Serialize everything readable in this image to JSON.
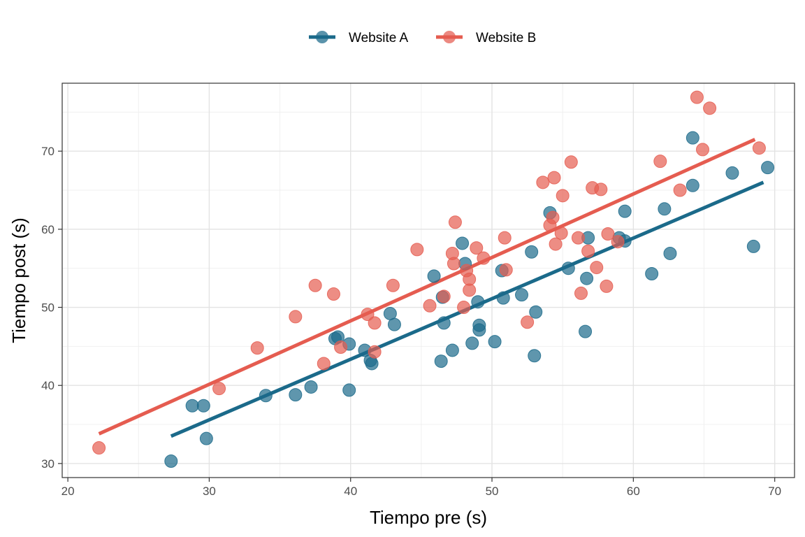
{
  "chart_data": {
    "type": "scatter",
    "title": "",
    "xlabel": "Tiempo pre (s)",
    "ylabel": "Tiempo post (s)",
    "xlim": [
      19.6,
      71.4
    ],
    "ylim": [
      28.2,
      78.7
    ],
    "x_ticks": [
      20,
      30,
      40,
      50,
      60,
      70
    ],
    "y_ticks": [
      30,
      40,
      50,
      60,
      70
    ],
    "grid": true,
    "legend_position": "top",
    "series": [
      {
        "name": "Website A",
        "color": "#1b6a8a",
        "points": [
          [
            27.3,
            30.3
          ],
          [
            28.8,
            37.4
          ],
          [
            29.6,
            37.4
          ],
          [
            29.8,
            33.2
          ],
          [
            34.0,
            38.7
          ],
          [
            36.1,
            38.8
          ],
          [
            37.2,
            39.8
          ],
          [
            38.9,
            46.0
          ],
          [
            39.1,
            46.2
          ],
          [
            39.9,
            45.3
          ],
          [
            39.9,
            39.4
          ],
          [
            41.0,
            44.5
          ],
          [
            41.4,
            43.2
          ],
          [
            41.5,
            42.8
          ],
          [
            42.8,
            49.2
          ],
          [
            43.1,
            47.8
          ],
          [
            45.9,
            54.0
          ],
          [
            46.4,
            43.1
          ],
          [
            46.5,
            51.3
          ],
          [
            46.6,
            48.0
          ],
          [
            47.2,
            44.5
          ],
          [
            47.9,
            58.2
          ],
          [
            48.1,
            55.6
          ],
          [
            48.6,
            45.4
          ],
          [
            49.0,
            50.7
          ],
          [
            49.1,
            47.7
          ],
          [
            49.1,
            47.1
          ],
          [
            50.2,
            45.6
          ],
          [
            50.7,
            54.7
          ],
          [
            50.8,
            51.2
          ],
          [
            52.1,
            51.6
          ],
          [
            52.8,
            57.1
          ],
          [
            53.0,
            43.8
          ],
          [
            53.1,
            49.4
          ],
          [
            54.1,
            62.1
          ],
          [
            55.4,
            55.0
          ],
          [
            56.6,
            46.9
          ],
          [
            56.7,
            53.7
          ],
          [
            56.8,
            58.9
          ],
          [
            59.0,
            58.9
          ],
          [
            59.4,
            62.3
          ],
          [
            59.4,
            58.5
          ],
          [
            61.3,
            54.3
          ],
          [
            62.2,
            62.6
          ],
          [
            62.6,
            56.9
          ],
          [
            64.2,
            71.7
          ],
          [
            64.2,
            65.6
          ],
          [
            67.0,
            67.2
          ],
          [
            68.5,
            57.8
          ],
          [
            69.5,
            67.9
          ]
        ],
        "trend": [
          [
            27.3,
            33.5
          ],
          [
            69.2,
            66.0
          ]
        ]
      },
      {
        "name": "Website B",
        "color": "#e55c50",
        "points": [
          [
            22.2,
            32.0
          ],
          [
            30.7,
            39.6
          ],
          [
            33.4,
            44.8
          ],
          [
            36.1,
            48.8
          ],
          [
            37.5,
            52.8
          ],
          [
            38.1,
            42.8
          ],
          [
            38.8,
            51.7
          ],
          [
            39.3,
            44.9
          ],
          [
            41.2,
            49.1
          ],
          [
            41.7,
            48.0
          ],
          [
            41.7,
            44.3
          ],
          [
            43.0,
            52.8
          ],
          [
            44.7,
            57.4
          ],
          [
            45.6,
            50.2
          ],
          [
            46.6,
            51.4
          ],
          [
            47.2,
            56.9
          ],
          [
            47.3,
            55.6
          ],
          [
            47.4,
            60.9
          ],
          [
            48.0,
            50.0
          ],
          [
            48.2,
            54.7
          ],
          [
            48.4,
            53.6
          ],
          [
            48.4,
            52.2
          ],
          [
            48.9,
            57.6
          ],
          [
            49.4,
            56.3
          ],
          [
            50.9,
            58.9
          ],
          [
            51.0,
            54.8
          ],
          [
            52.5,
            48.1
          ],
          [
            53.6,
            66.0
          ],
          [
            54.1,
            60.5
          ],
          [
            54.3,
            61.5
          ],
          [
            54.4,
            66.6
          ],
          [
            54.5,
            58.1
          ],
          [
            54.9,
            59.5
          ],
          [
            55.0,
            64.3
          ],
          [
            55.6,
            68.6
          ],
          [
            56.1,
            58.9
          ],
          [
            56.3,
            51.8
          ],
          [
            56.8,
            57.2
          ],
          [
            57.1,
            65.3
          ],
          [
            57.4,
            55.1
          ],
          [
            57.7,
            65.1
          ],
          [
            58.1,
            52.7
          ],
          [
            58.2,
            59.4
          ],
          [
            58.9,
            58.4
          ],
          [
            61.9,
            68.7
          ],
          [
            63.3,
            65.0
          ],
          [
            64.5,
            76.9
          ],
          [
            64.9,
            70.2
          ],
          [
            65.4,
            75.5
          ],
          [
            68.9,
            70.4
          ]
        ],
        "trend": [
          [
            22.2,
            33.8
          ],
          [
            68.6,
            71.5
          ]
        ]
      }
    ]
  }
}
